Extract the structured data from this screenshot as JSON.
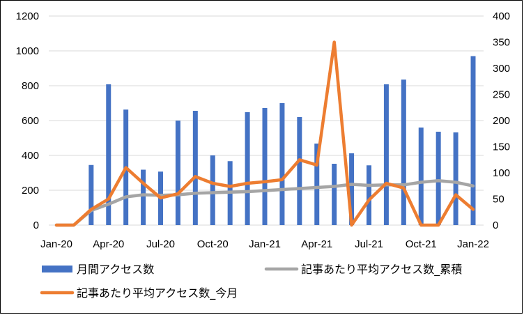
{
  "chart_data": {
    "type": "bar",
    "x_tick_labels": [
      "Jan-20",
      "Apr-20",
      "Jul-20",
      "Oct-20",
      "Jan-21",
      "Apr-21",
      "Jul-21",
      "Oct-21",
      "Jan-22"
    ],
    "y_left_ticks": [
      "0",
      "200",
      "400",
      "600",
      "800",
      "1000",
      "1200"
    ],
    "y_right_ticks": [
      "0",
      "50",
      "100",
      "150",
      "200",
      "250",
      "300",
      "350",
      "400"
    ],
    "ylim_left": [
      0,
      1200
    ],
    "ylim_right": [
      0,
      400
    ],
    "months": [
      "Jan-20",
      "Feb-20",
      "Mar-20",
      "Apr-20",
      "May-20",
      "Jun-20",
      "Jul-20",
      "Aug-20",
      "Sep-20",
      "Oct-20",
      "Nov-20",
      "Dec-20",
      "Jan-21",
      "Feb-21",
      "Mar-21",
      "Apr-21",
      "May-21",
      "Jun-21",
      "Jul-21",
      "Aug-21",
      "Sep-21",
      "Oct-21",
      "Nov-21",
      "Dec-21",
      "Jan-22"
    ],
    "series": [
      {
        "name": "月間アクセス数",
        "kind": "bar",
        "axis": "left",
        "color": "#4472C4",
        "values": [
          0,
          0,
          345,
          808,
          663,
          318,
          307,
          600,
          656,
          400,
          367,
          648,
          672,
          700,
          620,
          468,
          352,
          412,
          343,
          808,
          835,
          560,
          536,
          532,
          970
        ]
      },
      {
        "name": "記事あたり平均アクセス数_累積",
        "kind": "line",
        "axis": "right",
        "color": "#A5A5A5",
        "values": [
          0,
          0,
          28,
          40,
          54,
          58,
          57,
          58,
          61,
          62,
          63,
          64,
          66,
          68,
          70,
          72,
          74,
          78,
          76,
          77,
          77,
          82,
          85,
          82,
          75
        ]
      },
      {
        "name": "記事あたり平均アクセス数_今月",
        "kind": "line",
        "axis": "right",
        "color": "#ED7D31",
        "values": [
          0,
          0,
          30,
          50,
          110,
          80,
          52,
          60,
          93,
          80,
          74,
          80,
          83,
          87,
          125,
          115,
          350,
          0,
          48,
          80,
          71,
          0,
          0,
          58,
          30
        ]
      }
    ],
    "grid": "horizontal",
    "legend_position": "bottom"
  }
}
